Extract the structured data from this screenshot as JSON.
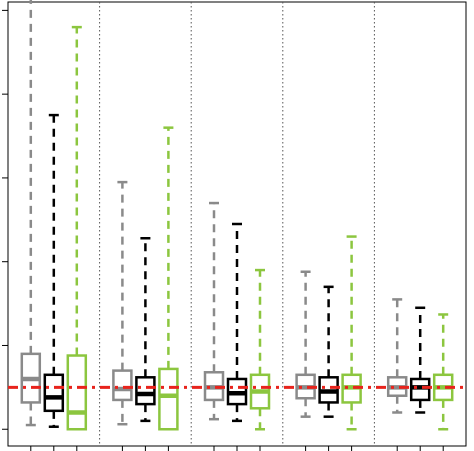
{
  "chart_data": {
    "type": "box",
    "title": "",
    "xlabel": "",
    "ylabel": "",
    "ylim": [
      -0.2,
      5.1
    ],
    "y_ticks": [
      0,
      1,
      2,
      3,
      4,
      5
    ],
    "grid": false,
    "legend": "none",
    "reference_line": {
      "y": 0.5,
      "style": "dash-dot",
      "color": "#e8231c"
    },
    "groups": 5,
    "series": [
      {
        "color": "#8a8a8a",
        "boxes": [
          {
            "group": 1,
            "whisker_low": 0.05,
            "q1": 0.32,
            "median": 0.6,
            "q3": 0.9,
            "whisker_high": 5.15
          },
          {
            "group": 2,
            "whisker_low": 0.06,
            "q1": 0.35,
            "median": 0.48,
            "q3": 0.7,
            "whisker_high": 2.95
          },
          {
            "group": 3,
            "whisker_low": 0.12,
            "q1": 0.35,
            "median": 0.5,
            "q3": 0.68,
            "whisker_high": 2.7
          },
          {
            "group": 4,
            "whisker_low": 0.15,
            "q1": 0.37,
            "median": 0.5,
            "q3": 0.65,
            "whisker_high": 1.88
          },
          {
            "group": 5,
            "whisker_low": 0.2,
            "q1": 0.4,
            "median": 0.5,
            "q3": 0.62,
            "whisker_high": 1.55
          }
        ]
      },
      {
        "color": "#000000",
        "boxes": [
          {
            "group": 1,
            "whisker_low": 0.03,
            "q1": 0.22,
            "median": 0.38,
            "q3": 0.65,
            "whisker_high": 3.75
          },
          {
            "group": 2,
            "whisker_low": 0.1,
            "q1": 0.3,
            "median": 0.42,
            "q3": 0.62,
            "whisker_high": 2.28
          },
          {
            "group": 3,
            "whisker_low": 0.1,
            "q1": 0.3,
            "median": 0.43,
            "q3": 0.6,
            "whisker_high": 2.45
          },
          {
            "group": 4,
            "whisker_low": 0.15,
            "q1": 0.32,
            "median": 0.45,
            "q3": 0.62,
            "whisker_high": 1.7
          },
          {
            "group": 5,
            "whisker_low": 0.2,
            "q1": 0.35,
            "median": 0.5,
            "q3": 0.6,
            "whisker_high": 1.45
          }
        ]
      },
      {
        "color": "#8cc63f",
        "boxes": [
          {
            "group": 1,
            "whisker_low": 0.0,
            "q1": 0.0,
            "median": 0.2,
            "q3": 0.88,
            "whisker_high": 4.8
          },
          {
            "group": 2,
            "whisker_low": 0.0,
            "q1": 0.0,
            "median": 0.4,
            "q3": 0.72,
            "whisker_high": 3.6
          },
          {
            "group": 3,
            "whisker_low": 0.0,
            "q1": 0.25,
            "median": 0.45,
            "q3": 0.65,
            "whisker_high": 1.9
          },
          {
            "group": 4,
            "whisker_low": 0.0,
            "q1": 0.32,
            "median": 0.5,
            "q3": 0.65,
            "whisker_high": 2.3
          },
          {
            "group": 5,
            "whisker_low": 0.0,
            "q1": 0.35,
            "median": 0.5,
            "q3": 0.65,
            "whisker_high": 1.37
          }
        ]
      }
    ]
  }
}
